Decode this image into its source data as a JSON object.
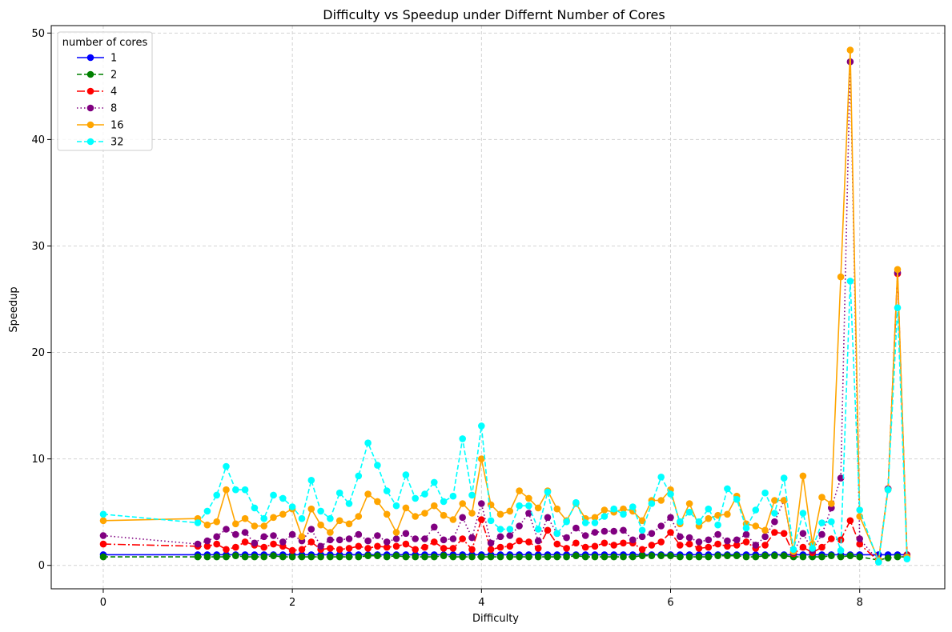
{
  "chart_data": {
    "type": "line",
    "title": "Difficulty vs Speedup under Differnt Number of Cores",
    "xlabel": "Difficulty",
    "ylabel": "Speedup",
    "xlim": [
      -0.55,
      8.9
    ],
    "ylim": [
      -2.2,
      50.7
    ],
    "xticks": [
      0,
      2,
      4,
      6,
      8
    ],
    "yticks": [
      0,
      10,
      20,
      30,
      40,
      50
    ],
    "grid": true,
    "legend": {
      "title": "number of cores",
      "position": "top-left"
    },
    "x": [
      0,
      1,
      1.1,
      1.2,
      1.3,
      1.4,
      1.5,
      1.6,
      1.7,
      1.8,
      1.9,
      2.0,
      2.1,
      2.2,
      2.3,
      2.4,
      2.5,
      2.6,
      2.7,
      2.8,
      2.9,
      3.0,
      3.1,
      3.2,
      3.3,
      3.4,
      3.5,
      3.6,
      3.7,
      3.8,
      3.9,
      4.0,
      4.1,
      4.2,
      4.3,
      4.4,
      4.5,
      4.6,
      4.7,
      4.8,
      4.9,
      5.0,
      5.1,
      5.2,
      5.3,
      5.4,
      5.5,
      5.6,
      5.7,
      5.8,
      5.9,
      6.0,
      6.1,
      6.2,
      6.3,
      6.4,
      6.5,
      6.6,
      6.7,
      6.8,
      6.9,
      7.0,
      7.1,
      7.2,
      7.3,
      7.4,
      7.5,
      7.6,
      7.7,
      7.8,
      7.9,
      8.0,
      8.2,
      8.3,
      8.4,
      8.5
    ],
    "series": [
      {
        "name": "1",
        "color": "#0000ff",
        "dash": "solid",
        "values": [
          1.0,
          1.0,
          1.0,
          1.0,
          1.0,
          1.0,
          1.0,
          1.0,
          1.0,
          1.0,
          1.0,
          1.0,
          1.0,
          1.0,
          1.0,
          1.0,
          1.0,
          1.0,
          1.0,
          1.0,
          1.0,
          1.0,
          1.0,
          1.0,
          1.0,
          1.0,
          1.0,
          1.0,
          1.0,
          1.0,
          1.0,
          1.0,
          1.0,
          1.0,
          1.0,
          1.0,
          1.0,
          1.0,
          1.0,
          1.0,
          1.0,
          1.0,
          1.0,
          1.0,
          1.0,
          1.0,
          1.0,
          1.0,
          1.0,
          1.0,
          1.0,
          1.0,
          1.0,
          1.0,
          1.0,
          1.0,
          1.0,
          1.0,
          1.0,
          1.0,
          1.0,
          1.0,
          1.0,
          1.0,
          1.0,
          1.0,
          1.0,
          1.0,
          1.0,
          1.0,
          1.0,
          1.0,
          1.0,
          1.0,
          1.0,
          1.0
        ]
      },
      {
        "name": "2",
        "color": "#008000",
        "dash": "dashed",
        "values": [
          0.8,
          0.8,
          0.8,
          0.8,
          0.8,
          0.9,
          0.8,
          0.8,
          0.8,
          0.9,
          0.8,
          0.8,
          0.8,
          0.8,
          0.8,
          0.8,
          0.8,
          0.8,
          0.8,
          0.9,
          0.9,
          0.8,
          0.9,
          0.8,
          0.8,
          0.8,
          0.8,
          0.9,
          0.8,
          0.8,
          0.8,
          0.8,
          0.8,
          0.8,
          0.8,
          0.8,
          0.8,
          0.8,
          0.8,
          0.8,
          0.8,
          0.9,
          0.8,
          0.8,
          0.8,
          0.8,
          0.8,
          0.8,
          0.9,
          0.9,
          0.9,
          0.9,
          0.8,
          0.8,
          0.8,
          0.8,
          0.9,
          0.9,
          0.9,
          0.8,
          0.8,
          0.9,
          0.9,
          0.9,
          0.8,
          0.8,
          0.8,
          0.8,
          0.9,
          0.8,
          0.9,
          0.8,
          0.5,
          0.7,
          0.8,
          0.8
        ]
      },
      {
        "name": "4",
        "color": "#ff0000",
        "dash": "dashdot",
        "values": [
          2.0,
          1.8,
          1.8,
          2.0,
          1.5,
          1.7,
          2.2,
          1.9,
          1.7,
          2.0,
          1.8,
          1.4,
          1.5,
          2.2,
          1.5,
          1.6,
          1.5,
          1.6,
          1.8,
          1.6,
          1.8,
          1.7,
          1.8,
          2.0,
          1.5,
          1.7,
          2.2,
          1.6,
          1.6,
          2.5,
          1.5,
          4.3,
          1.5,
          1.7,
          1.8,
          2.3,
          2.2,
          1.6,
          3.3,
          2.0,
          1.6,
          2.1,
          1.7,
          1.8,
          2.1,
          1.9,
          2.1,
          2.1,
          1.5,
          1.9,
          2.2,
          3.1,
          1.9,
          2.0,
          1.6,
          1.7,
          2.0,
          1.8,
          1.9,
          2.2,
          1.6,
          1.9,
          3.1,
          3.0,
          1.1,
          1.7,
          1.2,
          1.7,
          2.5,
          2.4,
          4.2,
          2.0,
          0.4,
          7.2,
          27.4,
          1.0
        ]
      },
      {
        "name": "8",
        "color": "#800080",
        "dash": "dotted",
        "values": [
          2.8,
          2.0,
          2.3,
          2.7,
          3.4,
          2.9,
          3.1,
          2.1,
          2.7,
          2.8,
          2.2,
          2.9,
          2.3,
          3.4,
          1.8,
          2.4,
          2.4,
          2.5,
          2.9,
          2.3,
          2.8,
          2.2,
          2.5,
          3.0,
          2.5,
          2.5,
          3.6,
          2.4,
          2.5,
          4.5,
          2.6,
          5.8,
          2.1,
          2.7,
          2.8,
          3.7,
          4.9,
          2.3,
          4.5,
          3.0,
          2.6,
          3.5,
          2.8,
          3.1,
          3.2,
          3.2,
          3.3,
          2.4,
          2.7,
          3.0,
          3.7,
          4.5,
          2.7,
          2.6,
          2.2,
          2.4,
          2.9,
          2.3,
          2.4,
          2.9,
          1.9,
          2.7,
          4.1,
          6.1,
          1.2,
          3.0,
          1.4,
          2.9,
          5.4,
          8.2,
          47.3,
          2.5,
          0.4,
          7.2,
          27.5,
          0.9
        ]
      },
      {
        "name": "16",
        "color": "#ffa500",
        "dash": "solid",
        "values": [
          4.2,
          4.4,
          3.8,
          4.1,
          7.1,
          3.9,
          4.4,
          3.7,
          3.7,
          4.5,
          4.8,
          5.3,
          2.7,
          5.3,
          3.8,
          3.1,
          4.2,
          3.9,
          4.6,
          6.7,
          6.0,
          4.8,
          3.1,
          5.4,
          4.6,
          4.9,
          5.6,
          4.7,
          4.3,
          5.8,
          4.9,
          10.0,
          5.7,
          4.8,
          5.1,
          7.0,
          6.3,
          5.4,
          7.0,
          5.3,
          4.2,
          5.8,
          4.4,
          4.5,
          5.2,
          5.0,
          5.3,
          5.1,
          4.2,
          6.1,
          6.1,
          7.1,
          3.9,
          5.8,
          3.7,
          4.4,
          4.7,
          4.8,
          6.5,
          3.9,
          3.7,
          3.3,
          6.1,
          6.1,
          1.3,
          8.4,
          2.0,
          6.4,
          5.8,
          27.1,
          48.4,
          4.6,
          0.5,
          7.1,
          27.8,
          0.8
        ]
      },
      {
        "name": "32",
        "color": "#00ffff",
        "dash": "dashed",
        "values": [
          4.8,
          4.0,
          5.1,
          6.6,
          9.3,
          7.1,
          7.1,
          5.4,
          4.4,
          6.6,
          6.3,
          5.5,
          4.4,
          8.0,
          5.1,
          4.4,
          6.8,
          5.8,
          8.4,
          11.5,
          9.4,
          7.0,
          5.6,
          8.5,
          6.3,
          6.7,
          7.8,
          6.0,
          6.5,
          11.9,
          6.6,
          13.1,
          4.2,
          3.4,
          3.4,
          5.6,
          5.6,
          3.4,
          6.9,
          3.0,
          4.1,
          5.9,
          4.0,
          4.0,
          4.6,
          5.3,
          4.8,
          5.5,
          3.3,
          5.8,
          8.3,
          6.7,
          4.1,
          5.0,
          4.1,
          5.3,
          3.8,
          7.2,
          6.2,
          3.5,
          5.2,
          6.8,
          4.9,
          8.2,
          1.5,
          4.9,
          1.6,
          4.0,
          4.1,
          1.4,
          26.7,
          5.2,
          0.3,
          7.1,
          24.2,
          0.6
        ]
      }
    ]
  }
}
